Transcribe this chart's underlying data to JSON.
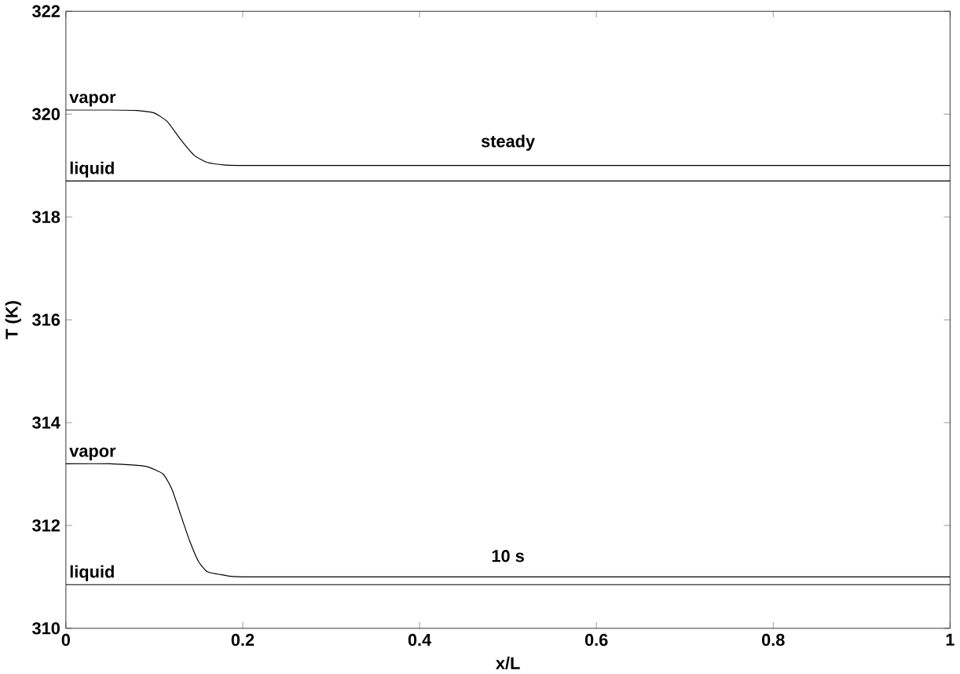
{
  "chart_data": {
    "type": "line",
    "xlabel": "x/L",
    "ylabel": "T (K)",
    "xlim": [
      0,
      1
    ],
    "ylim": [
      310,
      322
    ],
    "xticks": [
      0,
      0.2,
      0.4,
      0.6,
      0.8,
      1
    ],
    "yticks": [
      310,
      312,
      314,
      316,
      318,
      320,
      322
    ],
    "grid": false,
    "legend": false,
    "marker": "none",
    "line_style": "solid",
    "series": [
      {
        "name": "vapor",
        "color": "#000000",
        "x": [
          0,
          0.05,
          0.08,
          0.1,
          0.115,
          0.13,
          0.145,
          0.16,
          0.18,
          0.2,
          0.4,
          0.6,
          0.8,
          1
        ],
        "values": [
          320.08,
          320.08,
          320.07,
          320.02,
          319.85,
          319.5,
          319.2,
          319.06,
          319.01,
          319.0,
          319.0,
          319.0,
          319.0,
          319.0
        ]
      },
      {
        "name": "liquid",
        "color": "#000000",
        "x": [
          0,
          1
        ],
        "values": [
          318.7,
          318.7
        ]
      },
      {
        "name": "vapor",
        "color": "#000000",
        "x": [
          0,
          0.05,
          0.09,
          0.11,
          0.12,
          0.13,
          0.14,
          0.15,
          0.16,
          0.18,
          0.2,
          0.4,
          0.6,
          0.8,
          1
        ],
        "values": [
          313.2,
          313.2,
          313.15,
          313.0,
          312.7,
          312.2,
          311.7,
          311.3,
          311.1,
          311.03,
          311.0,
          311.0,
          311.0,
          311.0,
          311.0
        ]
      },
      {
        "name": "liquid",
        "color": "#000000",
        "x": [
          0,
          1
        ],
        "values": [
          310.85,
          310.85
        ]
      }
    ],
    "annotations": [
      "steady",
      "10 s"
    ]
  }
}
